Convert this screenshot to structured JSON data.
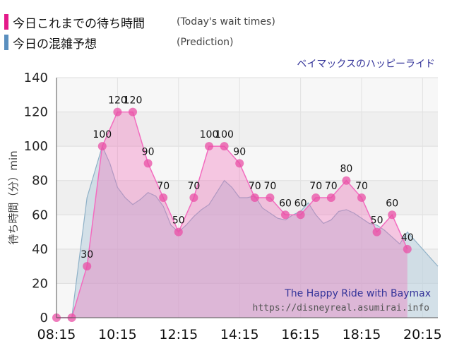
{
  "legend": {
    "actual_label": "今日これまでの待ち時間",
    "actual_note": "(Today's wait times)",
    "prediction_label": "今日の混雑予想",
    "prediction_note": "(Prediction)"
  },
  "attraction": "ベイマックスのハッピーライド",
  "credit": {
    "line1": "The Happy Ride with Baymax",
    "line2": "https://disneyreal.asumirai.info"
  },
  "colors": {
    "actual": "#e4198a",
    "prediction": "#5a8fbf"
  },
  "chart_data": {
    "type": "area",
    "ylabel": "待ち時間（分）min",
    "ylim": [
      0,
      140
    ],
    "yticks": [
      0,
      20,
      40,
      60,
      80,
      100,
      120,
      140
    ],
    "xticks": [
      "08:15",
      "10:15",
      "12:15",
      "14:15",
      "16:15",
      "18:15",
      "20:15"
    ],
    "xlim": [
      "08:15",
      "20:45"
    ],
    "grid": true,
    "series": [
      {
        "name": "今日これまでの待ち時間",
        "x": [
          "08:15",
          "08:45",
          "09:15",
          "09:45",
          "10:15",
          "10:45",
          "11:15",
          "11:45",
          "12:15",
          "12:45",
          "13:15",
          "13:45",
          "14:15",
          "14:45",
          "15:15",
          "15:45",
          "16:15",
          "16:45",
          "17:15",
          "17:45",
          "18:15",
          "18:45",
          "19:15",
          "19:45"
        ],
        "values": [
          0,
          0,
          30,
          100,
          120,
          120,
          90,
          70,
          50,
          70,
          100,
          100,
          90,
          70,
          70,
          60,
          60,
          70,
          70,
          80,
          70,
          50,
          60,
          40
        ]
      },
      {
        "name": "今日の混雑予想",
        "x": [
          "08:15",
          "08:30",
          "08:45",
          "09:00",
          "09:15",
          "09:30",
          "09:45",
          "10:00",
          "10:15",
          "10:30",
          "10:45",
          "11:00",
          "11:15",
          "11:30",
          "11:45",
          "12:00",
          "12:15",
          "12:30",
          "12:45",
          "13:00",
          "13:15",
          "13:30",
          "13:45",
          "14:00",
          "14:15",
          "14:30",
          "14:45",
          "15:00",
          "15:15",
          "15:30",
          "15:45",
          "16:00",
          "16:15",
          "16:30",
          "16:45",
          "17:00",
          "17:15",
          "17:30",
          "17:45",
          "18:00",
          "18:15",
          "18:30",
          "18:45",
          "19:00",
          "19:15",
          "19:30",
          "19:45",
          "20:00",
          "20:15",
          "20:30",
          "20:45"
        ],
        "values": [
          0,
          0,
          0,
          35,
          70,
          85,
          100,
          90,
          76,
          70,
          66,
          69,
          73,
          71,
          65,
          54,
          50,
          54,
          59,
          63,
          66,
          73,
          80,
          76,
          70,
          70,
          71,
          64,
          61,
          58,
          57,
          60,
          62,
          67,
          60,
          55,
          57,
          62,
          63,
          61,
          58,
          55,
          54,
          51,
          47,
          43,
          50,
          45,
          40,
          35,
          30
        ]
      }
    ]
  }
}
